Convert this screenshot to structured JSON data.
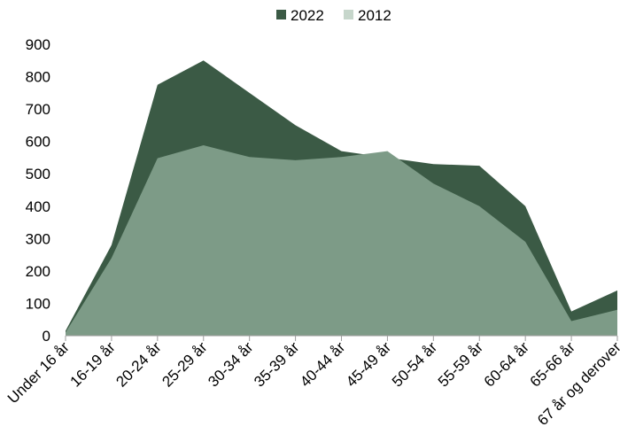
{
  "chart_data": {
    "type": "area",
    "categories": [
      "Under 16 år",
      "16-19 år",
      "20-24 år",
      "25-29 år",
      "30-34 år",
      "35-39 år",
      "40-44 år",
      "45-49 år",
      "50-54 år",
      "55-59 år",
      "60-64 år",
      "65-66 år",
      "67 år og derover"
    ],
    "series": [
      {
        "name": "2022",
        "color": "#3b5a45",
        "values": [
          15,
          280,
          775,
          850,
          750,
          650,
          570,
          550,
          530,
          525,
          400,
          75,
          140
        ]
      },
      {
        "name": "2012",
        "color": "#7d9b87",
        "values": [
          10,
          240,
          548,
          588,
          552,
          542,
          552,
          570,
          470,
          400,
          290,
          45,
          80
        ]
      }
    ],
    "legend": {
      "position": "top",
      "marker_colors": {
        "2022": "#3b5a45",
        "2012": "#c6d6cb"
      }
    },
    "ylim": [
      0,
      900
    ],
    "yticks": [
      0,
      100,
      200,
      300,
      400,
      500,
      600,
      700,
      800,
      900
    ],
    "ytick_labels": [
      "0",
      "100",
      "200",
      "300",
      "400",
      "500",
      "600",
      "700",
      "800",
      "900"
    ],
    "grid": false,
    "title": "",
    "xlabel": "",
    "ylabel": ""
  }
}
